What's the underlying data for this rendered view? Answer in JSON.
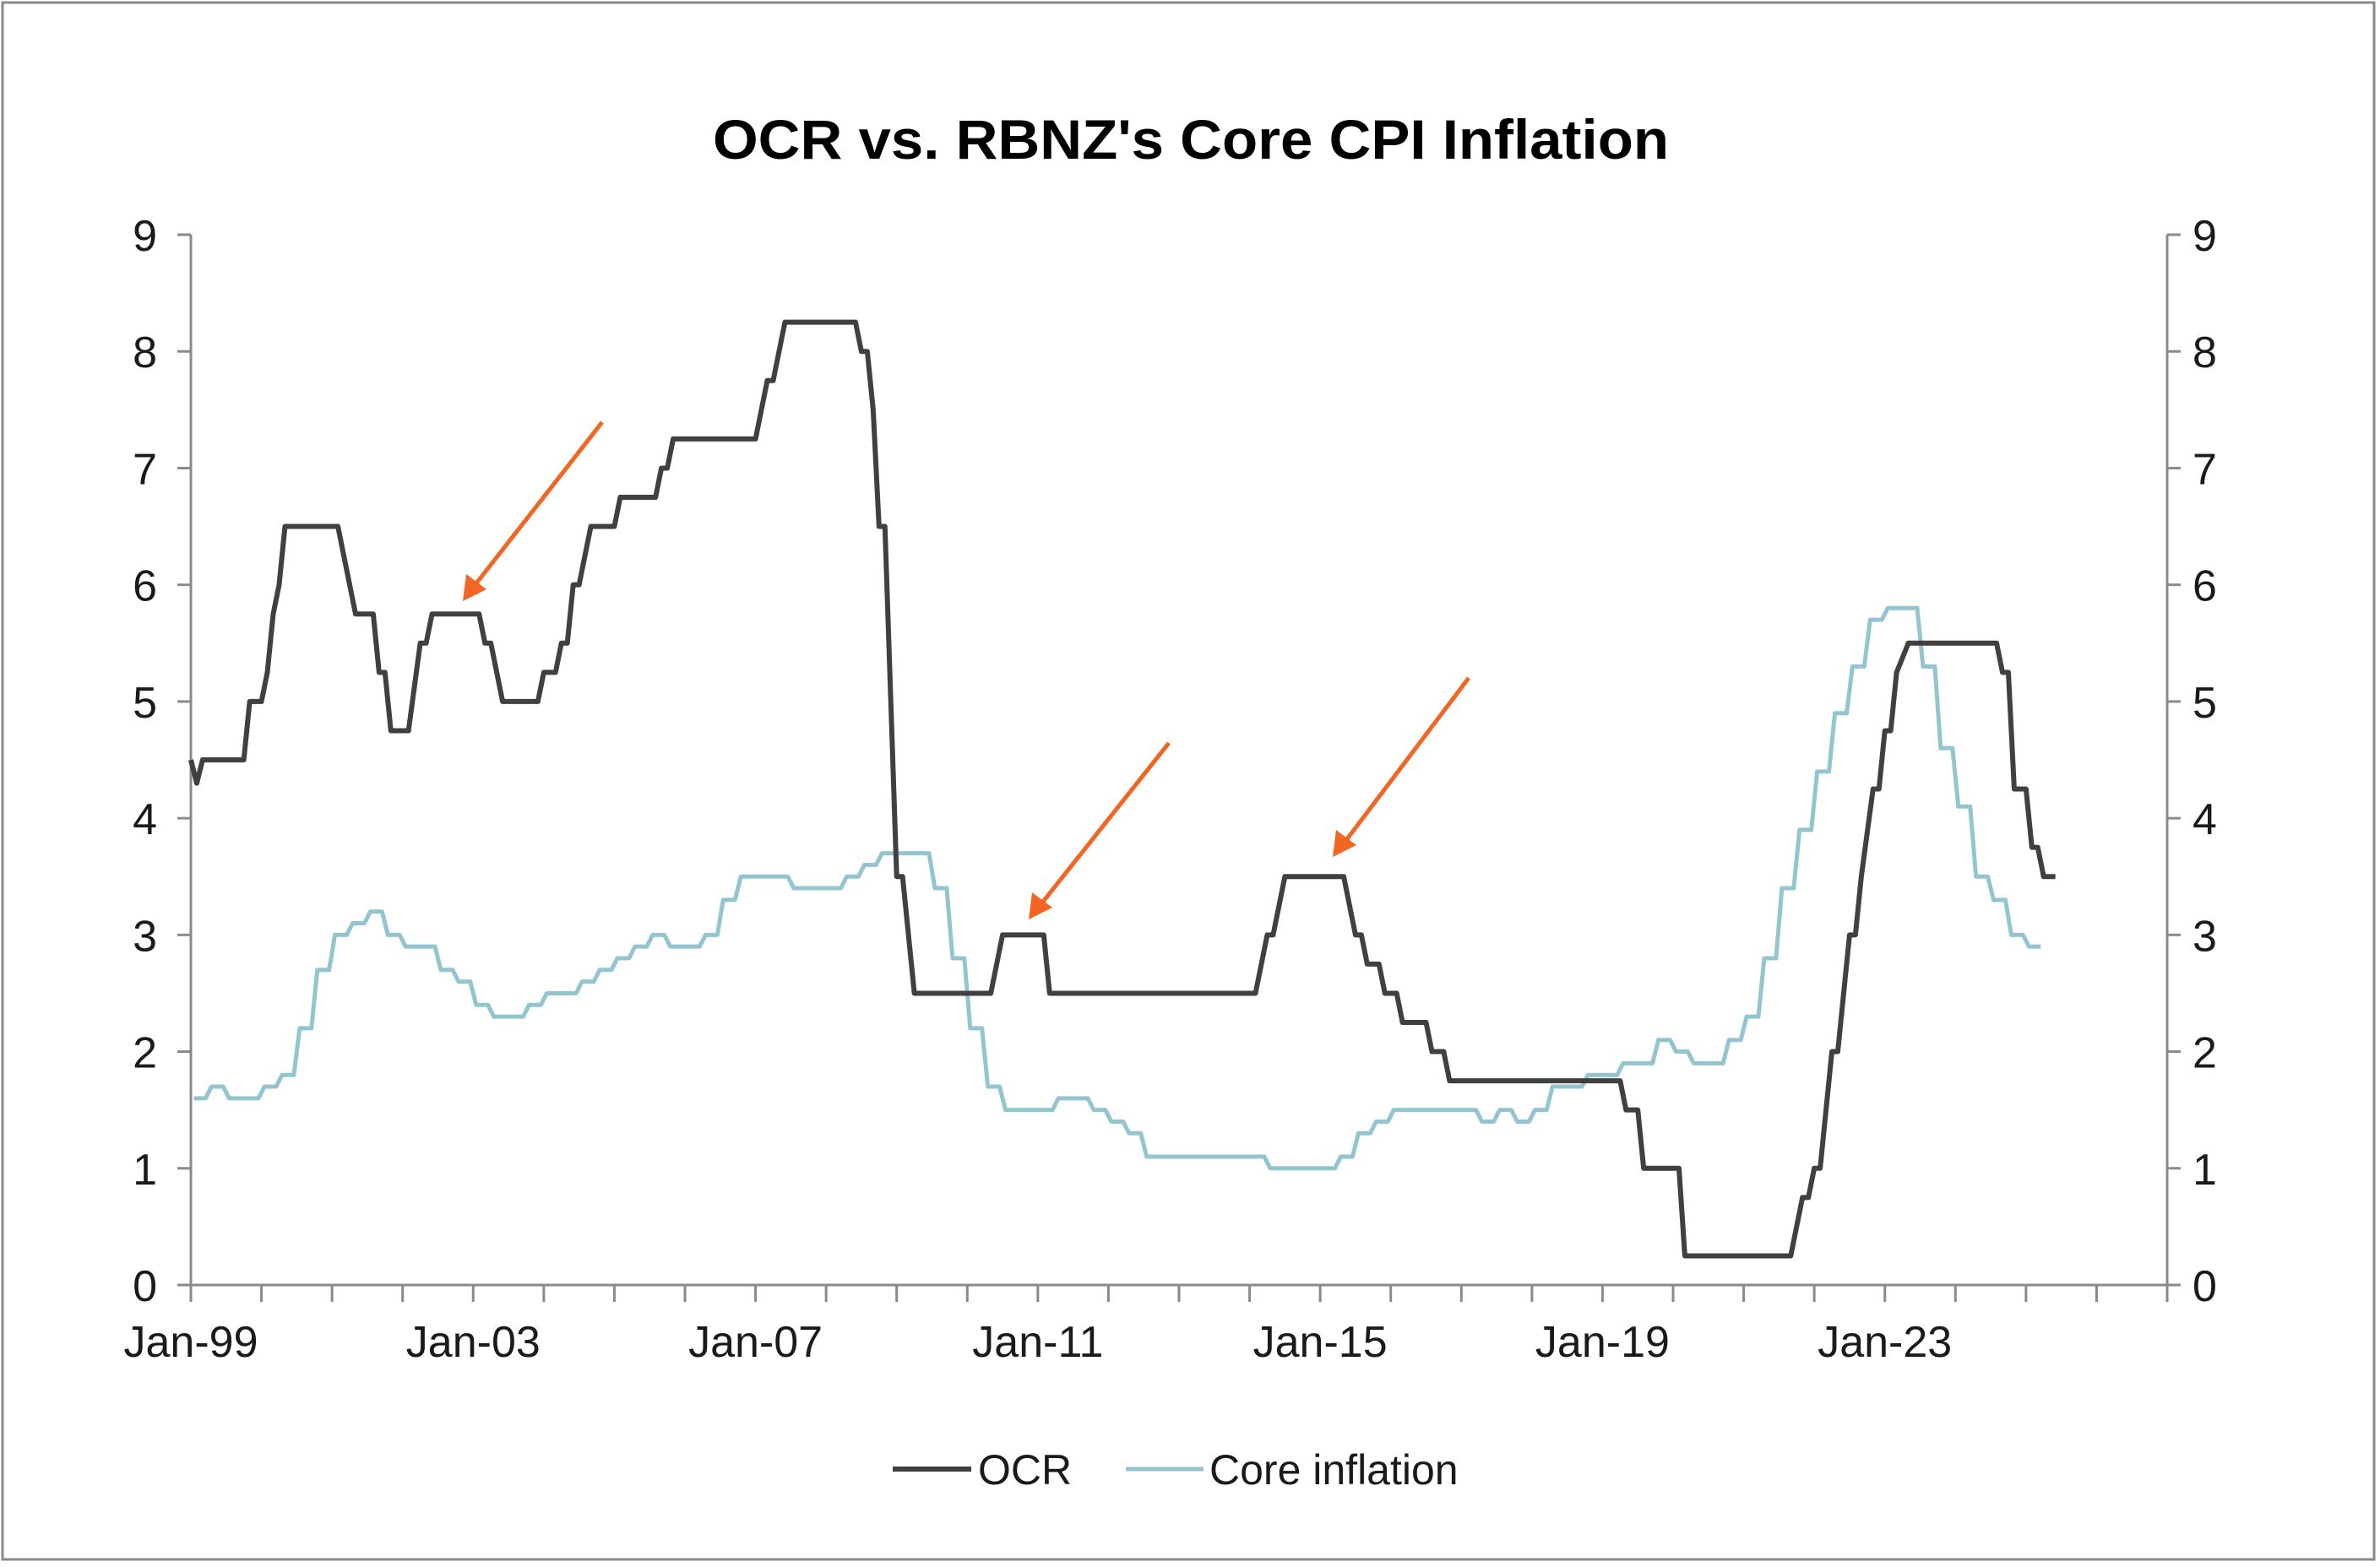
{
  "chart_data": {
    "type": "line",
    "title": "OCR vs. RBNZ's Core CPI Inflation",
    "xlabel": "",
    "ylabel": "",
    "x_range": [
      "1999-01",
      "2027-01"
    ],
    "x_tick_labels": [
      "Jan-99",
      "Jan-03",
      "Jan-07",
      "Jan-11",
      "Jan-15",
      "Jan-19",
      "Jan-23"
    ],
    "ylim": [
      0,
      9
    ],
    "y_ticks": [
      0,
      1,
      2,
      3,
      4,
      5,
      6,
      7,
      8,
      9
    ],
    "y2lim": [
      0,
      9
    ],
    "y2_ticks": [
      0,
      1,
      2,
      3,
      4,
      5,
      6,
      7,
      8,
      9
    ],
    "grid": false,
    "legend": "bottom",
    "annotations": "three orange arrows pointing at OCR peaks (2002-03, 2010-11, 2014-15)",
    "colors": {
      "OCR": "#404040",
      "Core inflation": "#93c5d1",
      "arrow": "#f26522",
      "axis": "#8a8a8a"
    },
    "series": [
      {
        "name": "OCR",
        "points": [
          [
            "1999-01",
            4.5
          ],
          [
            "1999-02",
            4.3
          ],
          [
            "1999-03",
            4.5
          ],
          [
            "1999-10",
            4.5
          ],
          [
            "1999-11",
            5.0
          ],
          [
            "2000-01",
            5.0
          ],
          [
            "2000-02",
            5.25
          ],
          [
            "2000-03",
            5.75
          ],
          [
            "2000-04",
            6.0
          ],
          [
            "2000-05",
            6.5
          ],
          [
            "2001-02",
            6.5
          ],
          [
            "2001-05",
            5.75
          ],
          [
            "2001-08",
            5.75
          ],
          [
            "2001-09",
            5.25
          ],
          [
            "2001-10",
            5.25
          ],
          [
            "2001-11",
            4.75
          ],
          [
            "2002-02",
            4.75
          ],
          [
            "2002-04",
            5.5
          ],
          [
            "2002-05",
            5.5
          ],
          [
            "2002-06",
            5.75
          ],
          [
            "2003-02",
            5.75
          ],
          [
            "2003-03",
            5.5
          ],
          [
            "2003-04",
            5.5
          ],
          [
            "2003-06",
            5.0
          ],
          [
            "2003-12",
            5.0
          ],
          [
            "2004-01",
            5.25
          ],
          [
            "2004-03",
            5.25
          ],
          [
            "2004-04",
            5.5
          ],
          [
            "2004-05",
            5.5
          ],
          [
            "2004-06",
            6.0
          ],
          [
            "2004-07",
            6.0
          ],
          [
            "2004-09",
            6.5
          ],
          [
            "2005-01",
            6.5
          ],
          [
            "2005-02",
            6.75
          ],
          [
            "2005-08",
            6.75
          ],
          [
            "2005-09",
            7.0
          ],
          [
            "2005-10",
            7.0
          ],
          [
            "2005-11",
            7.25
          ],
          [
            "2007-01",
            7.25
          ],
          [
            "2007-03",
            7.75
          ],
          [
            "2007-04",
            7.75
          ],
          [
            "2007-06",
            8.25
          ],
          [
            "2008-06",
            8.25
          ],
          [
            "2008-07",
            8.0
          ],
          [
            "2008-08",
            8.0
          ],
          [
            "2008-09",
            7.5
          ],
          [
            "2008-10",
            6.5
          ],
          [
            "2008-11",
            6.5
          ],
          [
            "2009-01",
            3.5
          ],
          [
            "2009-02",
            3.5
          ],
          [
            "2009-04",
            2.5
          ],
          [
            "2010-05",
            2.5
          ],
          [
            "2010-07",
            3.0
          ],
          [
            "2011-02",
            3.0
          ],
          [
            "2011-03",
            2.5
          ],
          [
            "2014-02",
            2.5
          ],
          [
            "2014-04",
            3.0
          ],
          [
            "2014-05",
            3.0
          ],
          [
            "2014-07",
            3.5
          ],
          [
            "2015-05",
            3.5
          ],
          [
            "2015-07",
            3.0
          ],
          [
            "2015-08",
            3.0
          ],
          [
            "2015-09",
            2.75
          ],
          [
            "2015-11",
            2.75
          ],
          [
            "2015-12",
            2.5
          ],
          [
            "2016-02",
            2.5
          ],
          [
            "2016-03",
            2.25
          ],
          [
            "2016-07",
            2.25
          ],
          [
            "2016-08",
            2.0
          ],
          [
            "2016-10",
            2.0
          ],
          [
            "2016-11",
            1.75
          ],
          [
            "2019-04",
            1.75
          ],
          [
            "2019-05",
            1.5
          ],
          [
            "2019-07",
            1.5
          ],
          [
            "2019-08",
            1.0
          ],
          [
            "2020-02",
            1.0
          ],
          [
            "2020-03",
            0.25
          ],
          [
            "2021-09",
            0.25
          ],
          [
            "2021-11",
            0.75
          ],
          [
            "2021-12",
            0.75
          ],
          [
            "2022-01",
            1.0
          ],
          [
            "2022-02",
            1.0
          ],
          [
            "2022-04",
            2.0
          ],
          [
            "2022-05",
            2.0
          ],
          [
            "2022-07",
            3.0
          ],
          [
            "2022-08",
            3.0
          ],
          [
            "2022-09",
            3.5
          ],
          [
            "2022-11",
            4.25
          ],
          [
            "2022-12",
            4.25
          ],
          [
            "2023-01",
            4.75
          ],
          [
            "2023-02",
            4.75
          ],
          [
            "2023-03",
            5.25
          ],
          [
            "2023-05",
            5.5
          ],
          [
            "2024-08",
            5.5
          ],
          [
            "2024-09",
            5.25
          ],
          [
            "2024-10",
            5.25
          ],
          [
            "2024-11",
            4.25
          ],
          [
            "2025-01",
            4.25
          ],
          [
            "2025-02",
            3.75
          ],
          [
            "2025-03",
            3.75
          ],
          [
            "2025-04",
            3.5
          ],
          [
            "2025-06",
            3.5
          ]
        ]
      },
      {
        "name": "Core inflation",
        "start": "1999-Q1",
        "frequency": "quarterly",
        "values": [
          1.6,
          1.7,
          1.6,
          1.6,
          1.7,
          1.8,
          2.2,
          2.7,
          3.0,
          3.1,
          3.2,
          3.0,
          2.9,
          2.9,
          2.7,
          2.6,
          2.4,
          2.3,
          2.3,
          2.4,
          2.5,
          2.5,
          2.6,
          2.7,
          2.8,
          2.9,
          3.0,
          2.9,
          2.9,
          3.0,
          3.3,
          3.5,
          3.5,
          3.5,
          3.4,
          3.4,
          3.4,
          3.5,
          3.6,
          3.7,
          3.7,
          3.7,
          3.4,
          2.8,
          2.2,
          1.7,
          1.5,
          1.5,
          1.5,
          1.6,
          1.6,
          1.5,
          1.4,
          1.3,
          1.1,
          1.1,
          1.1,
          1.1,
          1.1,
          1.1,
          1.1,
          1.0,
          1.0,
          1.0,
          1.0,
          1.1,
          1.3,
          1.4,
          1.5,
          1.5,
          1.5,
          1.5,
          1.5,
          1.4,
          1.5,
          1.4,
          1.5,
          1.7,
          1.7,
          1.8,
          1.8,
          1.9,
          1.9,
          2.1,
          2.0,
          1.9,
          1.9,
          2.1,
          2.3,
          2.8,
          3.4,
          3.9,
          4.4,
          4.9,
          5.3,
          5.7,
          5.8,
          5.8,
          5.3,
          4.6,
          4.1,
          3.5,
          3.3,
          3.0,
          2.9
        ]
      }
    ]
  }
}
